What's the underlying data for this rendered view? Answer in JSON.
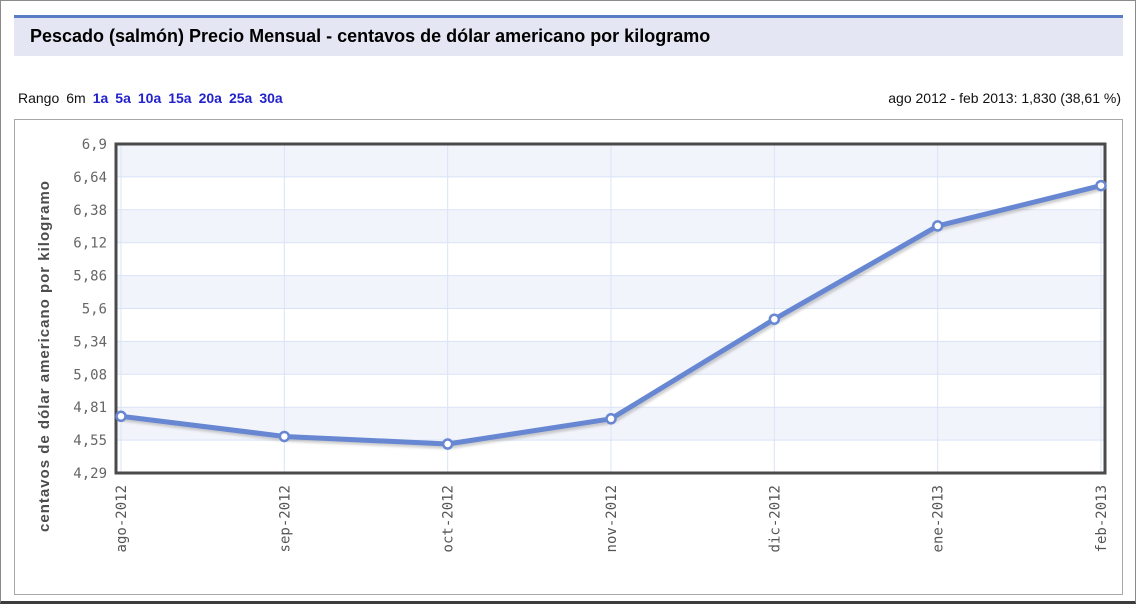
{
  "header": {
    "title": "Pescado (salmón) Precio Mensual - centavos de dólar americano por kilogramo"
  },
  "range_bar": {
    "label": "Rango",
    "current": "6m",
    "options": [
      "1a",
      "5a",
      "10a",
      "15a",
      "20a",
      "25a",
      "30a"
    ],
    "summary": "ago 2012 - feb 2013: 1,830 (38,61 %)",
    "link_color": "#2222cc"
  },
  "chart_data": {
    "type": "line",
    "title": "Pescado (salmón) Precio Mensual - centavos de dólar americano por kilogramo",
    "x": [
      "ago-2012",
      "sep-2012",
      "oct-2012",
      "nov-2012",
      "dic-2012",
      "ene-2013",
      "feb-2013"
    ],
    "values": [
      4.74,
      4.58,
      4.52,
      4.72,
      5.51,
      6.25,
      6.57
    ],
    "xlabel": "",
    "ylabel": "centavos de dólar americano por kilogramo",
    "ylim": [
      4.29,
      6.9
    ],
    "y_tick_labels": [
      "6,9",
      "6,64",
      "6,38",
      "6,12",
      "5,86",
      "5,6",
      "5,34",
      "5,08",
      "4,81",
      "4,55",
      "4,29"
    ],
    "grid": true,
    "legend": "none",
    "change_absolute": "1,830",
    "change_percent": "38,61 %",
    "colors": {
      "line": "#6787d2",
      "marker_fill": "#ffffff",
      "band": "#f2f4fb",
      "gridline": "#d9e3f6",
      "plot_border": "#4a4a4a"
    }
  }
}
